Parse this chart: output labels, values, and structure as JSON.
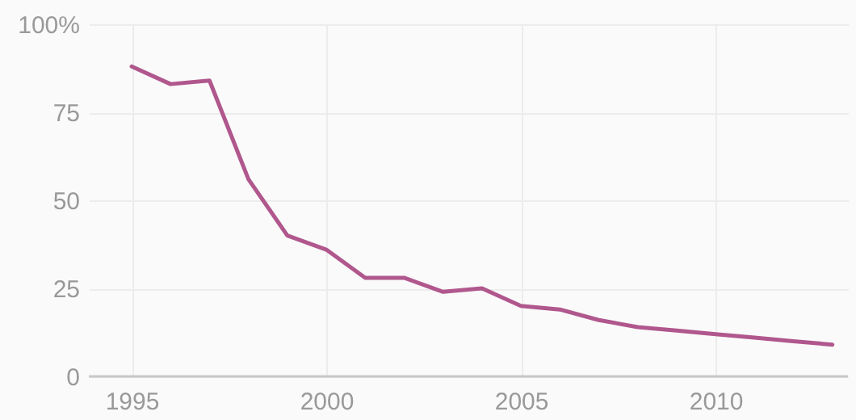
{
  "chart_data": {
    "type": "line",
    "x": [
      1995,
      1996,
      1997,
      1998,
      1999,
      2000,
      2001,
      2002,
      2003,
      2004,
      2005,
      2006,
      2007,
      2008,
      2009,
      2010,
      2011,
      2012,
      2013
    ],
    "series": [
      {
        "color": "#b0578d",
        "values": [
          88,
          83,
          84,
          56,
          40,
          36,
          28,
          28,
          24,
          25,
          20,
          19,
          16,
          14,
          13,
          12,
          11,
          10,
          9
        ]
      }
    ],
    "xlim": [
      1993.9,
      2013.4
    ],
    "xticks": [
      1995,
      2000,
      2005,
      2010
    ],
    "ylim": [
      0,
      100
    ],
    "yticks": [
      0,
      25,
      50,
      75,
      {
        "value": 100,
        "label": "100%"
      }
    ],
    "grid": true,
    "marker": "none",
    "line_style": "solid"
  }
}
